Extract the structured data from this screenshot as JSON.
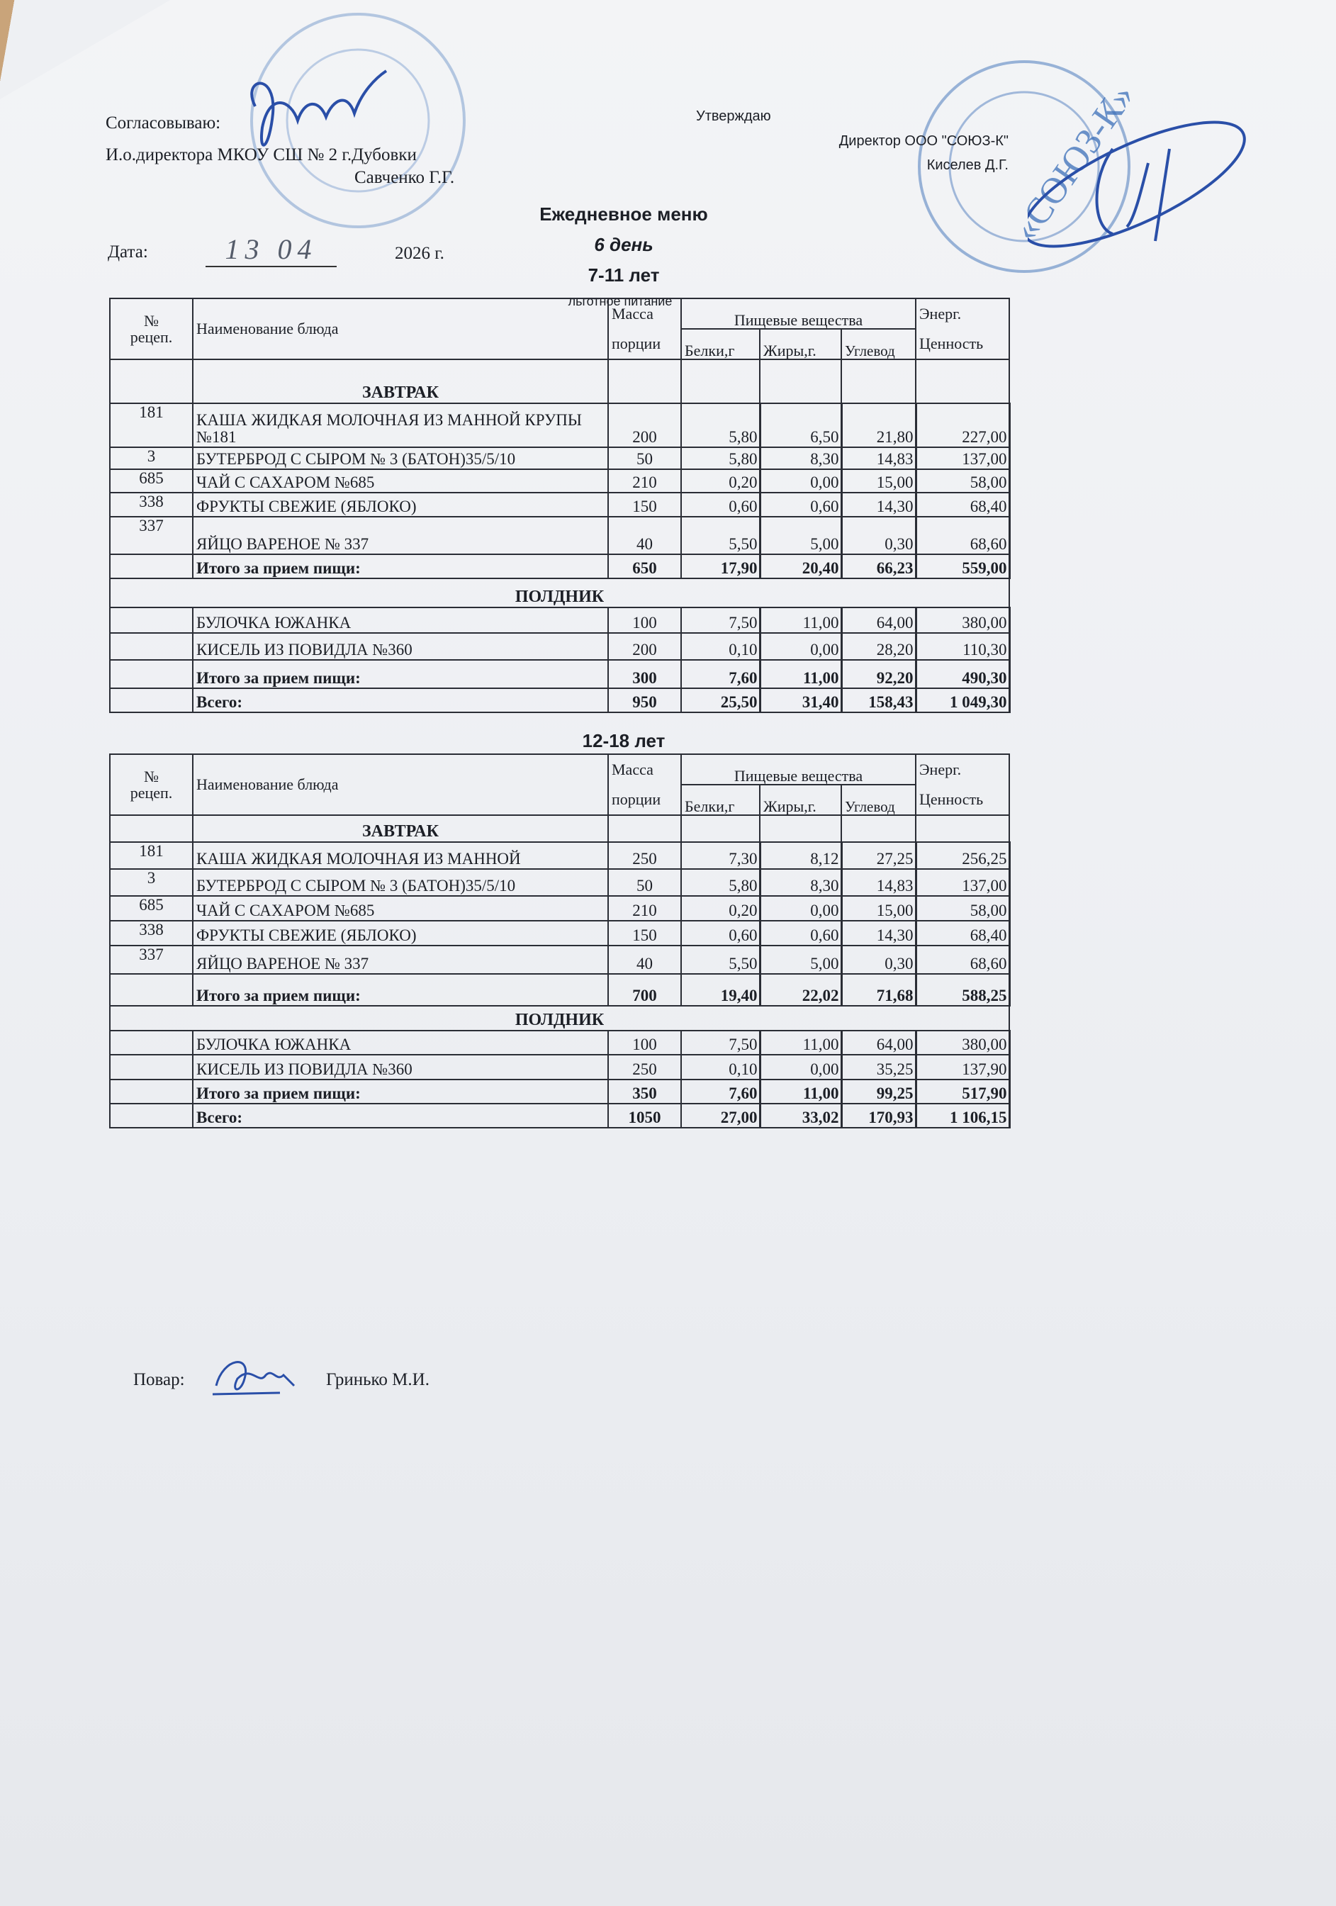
{
  "header": {
    "agree_label": "Согласовываю:",
    "agree_position": "И.о.директора МКОУ СШ № 2 г.Дубовки",
    "agree_name": "Савченко Г.Г.",
    "approve_label": "Утверждаю",
    "approve_position": "Директор ООО \"СОЮЗ-К\"",
    "approve_name": "Киселев Д.Г.",
    "stamp_text": "СОЮЗ-К"
  },
  "document": {
    "title": "Ежедневное меню",
    "day": "6 день",
    "date_label": "Дата:",
    "date_handwritten": "13 04",
    "year": "2026 г.",
    "subtitle": "льготное питание"
  },
  "columns": {
    "recipe_no_1": "№",
    "recipe_no_2": "рецеп.",
    "dish_name": "Наименование блюда",
    "mass_1": "Масса",
    "mass_2": "порции",
    "nutrients": "Пищевые вещества",
    "protein": "Белки,г",
    "fat": "Жиры,г.",
    "carbs": "Углевод",
    "energy_1": "Энерг.",
    "energy_2": "Ценность"
  },
  "tables": [
    {
      "age_group": "7-11 лет",
      "rows": [
        {
          "type": "section",
          "label": "ЗАВТРАК",
          "blank_cols": true
        },
        {
          "code": "181",
          "name": "КАША ЖИДКАЯ МОЛОЧНАЯ ИЗ МАННОЙ КРУПЫ №181",
          "mass": "200",
          "protein": "5,80",
          "fat": "6,50",
          "carbs": "21,80",
          "energy": "227,00",
          "tall": true
        },
        {
          "code": "3",
          "name": "БУТЕРБРОД С СЫРОМ № 3   (БАТОН)35/5/10",
          "mass": "50",
          "protein": "5,80",
          "fat": "8,30",
          "carbs": "14,83",
          "energy": "137,00",
          "tall": true
        },
        {
          "code": "685",
          "name": "ЧАЙ С САХАРОМ №685",
          "mass": "210",
          "protein": "0,20",
          "fat": "0,00",
          "carbs": "15,00",
          "energy": "58,00"
        },
        {
          "code": "338",
          "name": "ФРУКТЫ СВЕЖИЕ (ЯБЛОКО)",
          "mass": "150",
          "protein": "0,60",
          "fat": "0,60",
          "carbs": "14,30",
          "energy": "68,40"
        },
        {
          "code": "337",
          "name": "ЯЙЦО ВАРЕНОЕ № 337",
          "mass": "40",
          "protein": "5,50",
          "fat": "5,00",
          "carbs": "0,30",
          "energy": "68,60"
        },
        {
          "type": "total",
          "code": "",
          "name": "Итого за прием пищи:",
          "mass": "650",
          "protein": "17,90",
          "fat": "20,40",
          "carbs": "66,23",
          "energy": "559,00"
        },
        {
          "type": "section",
          "label": "ПОЛДНИК"
        },
        {
          "code": "",
          "name": "БУЛОЧКА ЮЖАНКА",
          "mass": "100",
          "protein": "7,50",
          "fat": "11,00",
          "carbs": "64,00",
          "energy": "380,00"
        },
        {
          "code": "",
          "name": "КИСЕЛЬ ИЗ ПОВИДЛА №360",
          "mass": "200",
          "protein": "0,10",
          "fat": "0,00",
          "carbs": "28,20",
          "energy": "110,30"
        },
        {
          "type": "total",
          "code": "",
          "name": "Итого за прием пищи:",
          "mass": "300",
          "protein": "7,60",
          "fat": "11,00",
          "carbs": "92,20",
          "energy": "490,30"
        },
        {
          "type": "total",
          "code": "",
          "name": "Всего:",
          "mass": "950",
          "protein": "25,50",
          "fat": "31,40",
          "carbs": "158,43",
          "energy": "1 049,30"
        }
      ]
    },
    {
      "age_group": "12-18 лет",
      "rows": [
        {
          "type": "section",
          "label": "ЗАВТРАК",
          "blank_cols": true
        },
        {
          "code": "181",
          "name": "КАША ЖИДКАЯ МОЛОЧНАЯ ИЗ МАННОЙ",
          "mass": "250",
          "protein": "7,30",
          "fat": "8,12",
          "carbs": "27,25",
          "energy": "256,25"
        },
        {
          "code": "3",
          "name": "БУТЕРБРОД С СЫРОМ № 3   (БАТОН)35/5/10",
          "mass": "50",
          "protein": "5,80",
          "fat": "8,30",
          "carbs": "14,83",
          "energy": "137,00"
        },
        {
          "code": "685",
          "name": "ЧАЙ С САХАРОМ №685",
          "mass": "210",
          "protein": "0,20",
          "fat": "0,00",
          "carbs": "15,00",
          "energy": "58,00"
        },
        {
          "code": "338",
          "name": "ФРУКТЫ СВЕЖИЕ (ЯБЛОКО)",
          "mass": "150",
          "protein": "0,60",
          "fat": "0,60",
          "carbs": "14,30",
          "energy": "68,40"
        },
        {
          "code": "337",
          "name": "ЯЙЦО ВАРЕНОЕ № 337",
          "mass": "40",
          "protein": "5,50",
          "fat": "5,00",
          "carbs": "0,30",
          "energy": "68,60"
        },
        {
          "type": "total",
          "code": "",
          "name": "Итого за прием пищи:",
          "mass": "700",
          "protein": "19,40",
          "fat": "22,02",
          "carbs": "71,68",
          "energy": "588,25"
        },
        {
          "type": "section",
          "label": "ПОЛДНИК"
        },
        {
          "code": "",
          "name": "БУЛОЧКА ЮЖАНКА",
          "mass": "100",
          "protein": "7,50",
          "fat": "11,00",
          "carbs": "64,00",
          "energy": "380,00"
        },
        {
          "code": "",
          "name": "КИСЕЛЬ ИЗ ПОВИДЛА №360",
          "mass": "250",
          "protein": "0,10",
          "fat": "0,00",
          "carbs": "35,25",
          "energy": "137,90"
        },
        {
          "type": "total",
          "code": "",
          "name": "Итого за прием пищи:",
          "mass": "350",
          "protein": "7,60",
          "fat": "11,00",
          "carbs": "99,25",
          "energy": "517,90"
        },
        {
          "type": "total",
          "code": "",
          "name": "Всего:",
          "mass": "1050",
          "protein": "27,00",
          "fat": "33,02",
          "carbs": "170,93",
          "energy": "1 106,15"
        }
      ]
    }
  ],
  "footer": {
    "cook_label": "Повар:",
    "cook_name": "Гринько М.И."
  },
  "colors": {
    "ink": "#1c1f26",
    "stamp": "#3b6fb8",
    "signature": "#2a4fa8"
  }
}
